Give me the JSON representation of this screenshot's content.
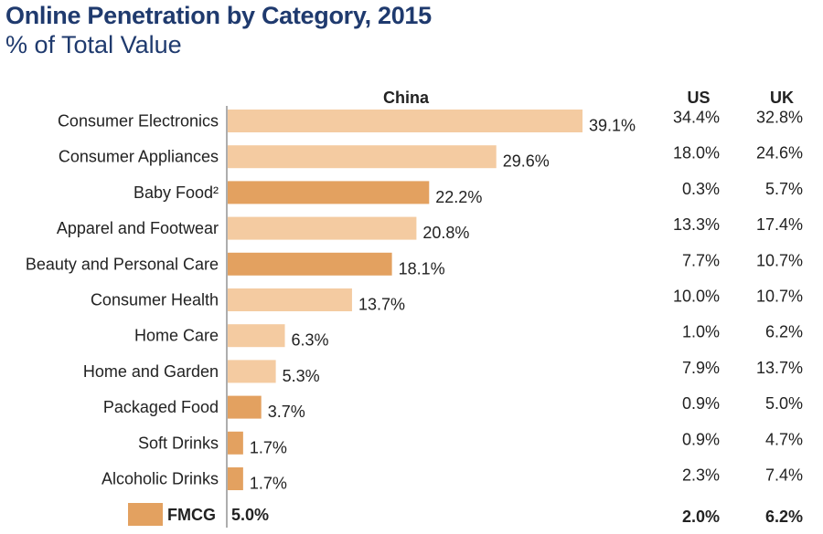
{
  "title": "Online Penetration by Category, 2015",
  "subtitle": "% of Total Value",
  "colors": {
    "bar_light": "#f4cba1",
    "bar_dark": "#e3a160",
    "label_green": "#3b9a45",
    "label_red": "#c7362f",
    "label_default": "#222222",
    "axis": "#777777"
  },
  "chart_data": {
    "type": "bar",
    "orientation": "horizontal",
    "series_header": "China",
    "categories": [
      "Consumer Electronics",
      "Consumer Appliances",
      "Baby Food²",
      "Apparel and Footwear",
      "Beauty and Personal Care",
      "Consumer Health",
      "Home Care",
      "Home and Garden",
      "Packaged Food",
      "Soft Drinks",
      "Alcoholic Drinks"
    ],
    "values": [
      39.1,
      29.6,
      22.2,
      20.8,
      18.1,
      13.7,
      6.3,
      5.3,
      3.7,
      1.7,
      1.7
    ],
    "value_labels": [
      "39.1%",
      "29.6%",
      "22.2%",
      "20.8%",
      "18.1%",
      "13.7%",
      "6.3%",
      "5.3%",
      "3.7%",
      "1.7%",
      "1.7%"
    ],
    "bar_shade": [
      "light",
      "light",
      "dark",
      "light",
      "dark",
      "light",
      "light",
      "light",
      "dark",
      "dark",
      "dark"
    ],
    "label_color": [
      "green",
      "green",
      "green",
      "green",
      "green",
      "green",
      "green",
      "red",
      "default",
      "default",
      "default"
    ],
    "xlim": [
      0,
      39.1
    ],
    "table_columns": [
      {
        "header": "US",
        "values": [
          "34.4%",
          "18.0%",
          "0.3%",
          "13.3%",
          "7.7%",
          "10.0%",
          "1.0%",
          "7.9%",
          "0.9%",
          "0.9%",
          "2.3%"
        ]
      },
      {
        "header": "UK",
        "values": [
          "32.8%",
          "24.6%",
          "5.7%",
          "17.4%",
          "10.7%",
          "10.7%",
          "6.2%",
          "13.7%",
          "5.0%",
          "4.7%",
          "7.4%"
        ]
      }
    ],
    "legend": {
      "label": "FMCG",
      "china": "5.0%",
      "us": "2.0%",
      "uk": "6.2%"
    }
  }
}
